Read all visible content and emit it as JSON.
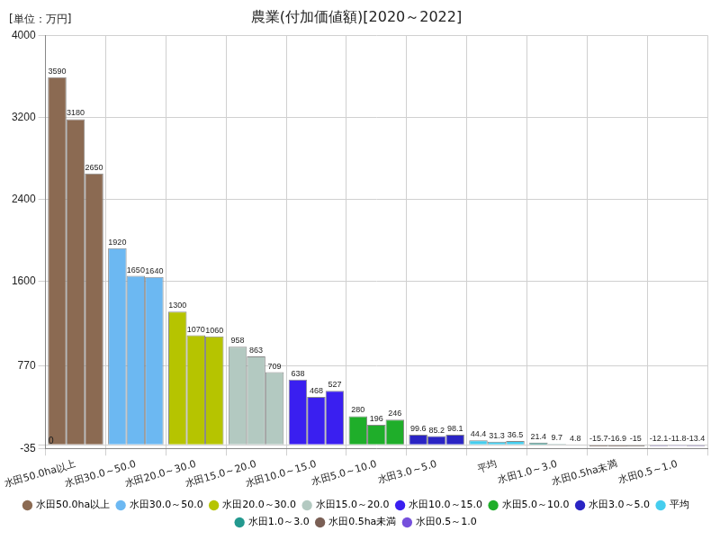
{
  "chart_data": {
    "type": "bar",
    "title": "農業(付加価値額)[2020～2022]",
    "y_label": "[単位：万円]",
    "categories": [
      "水田50.0ha以上",
      "水田30.0～50.0",
      "水田20.0～30.0",
      "水田15.0～20.0",
      "水田10.0～15.0",
      "水田5.0～10.0",
      "水田3.0～5.0",
      "平均",
      "水田1.0～3.0",
      "水田0.5ha未満",
      "水田0.5～1.0"
    ],
    "colors": [
      "#8b6a52",
      "#6cb8f2",
      "#b6c400",
      "#b3c9c1",
      "#3a1ff0",
      "#1fae2a",
      "#2a24c4",
      "#45cdee",
      "#23998f",
      "#7a5f55",
      "#7650dc"
    ],
    "series": [
      {
        "values": [
          3590,
          1920,
          1300,
          958,
          638,
          280,
          99.6,
          44.4,
          21.4,
          -15.7,
          -12.1
        ]
      },
      {
        "values": [
          3180,
          1650,
          1070,
          863,
          468,
          196,
          85.2,
          31.3,
          9.7,
          -16.9,
          -11.8
        ]
      },
      {
        "values": [
          2650,
          1640,
          1060,
          709,
          527,
          246,
          98.1,
          36.5,
          4.8,
          -15.0,
          -13.4
        ]
      }
    ],
    "ylim": [
      -35,
      4000
    ],
    "yticks": [
      -35,
      0,
      770,
      1600,
      2400,
      3200,
      4000
    ],
    "grid": true,
    "legend": "bottom",
    "data_labels": true
  }
}
